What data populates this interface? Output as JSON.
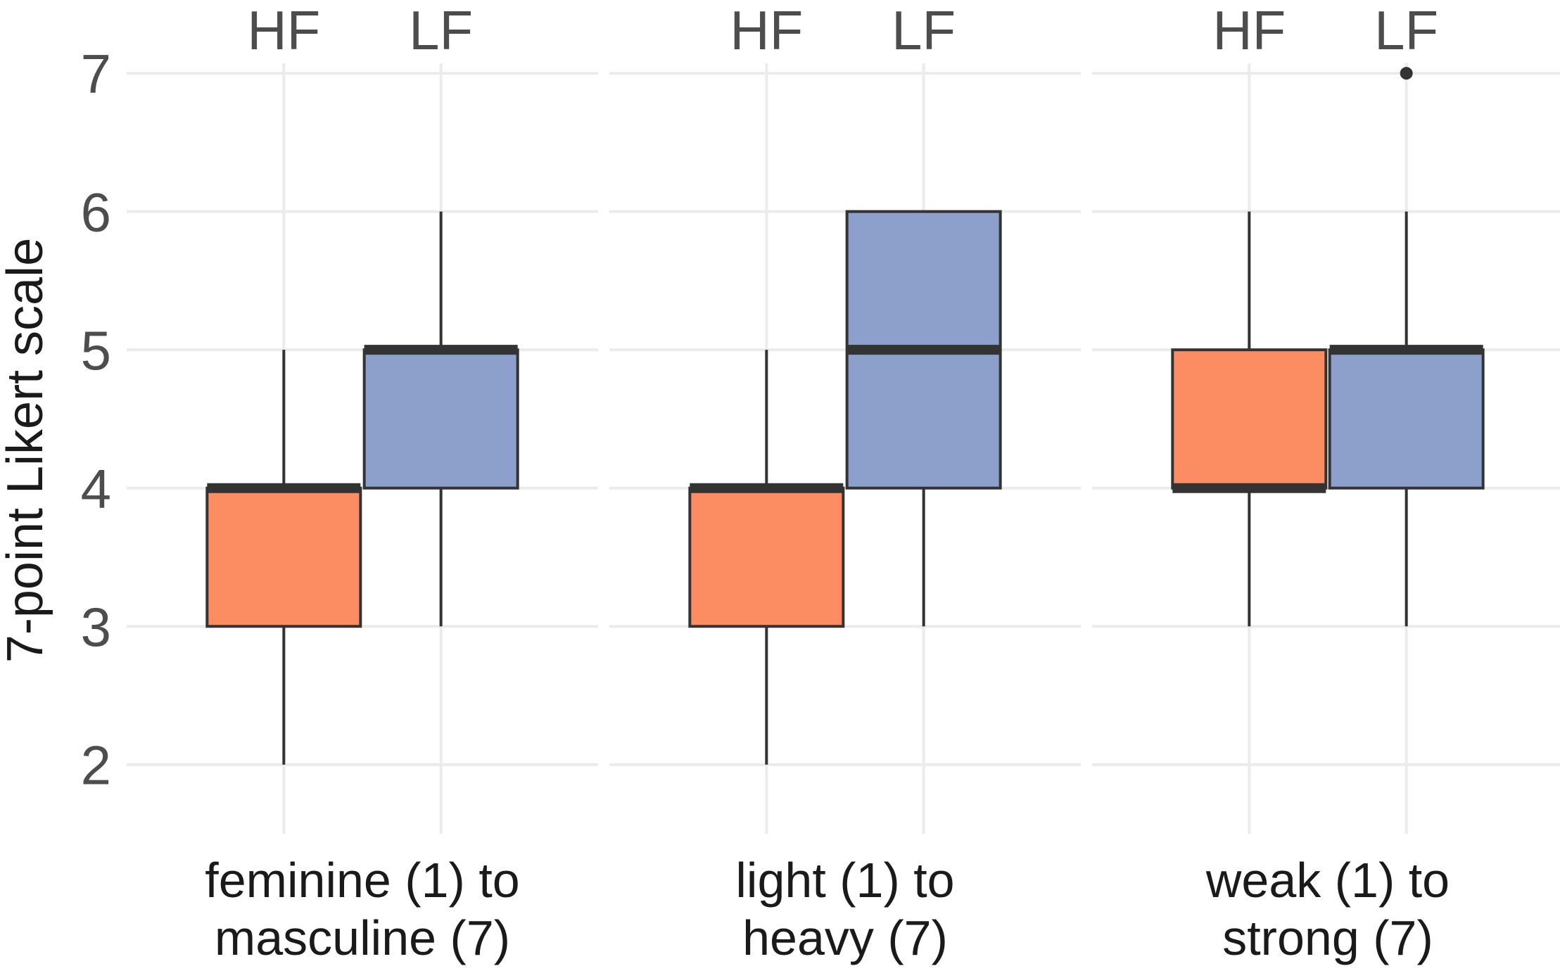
{
  "chart_data": {
    "type": "boxplot",
    "ylabel": "7-point Likert scale",
    "ylim": [
      1.5,
      7.25
    ],
    "y_ticks": [
      2,
      3,
      4,
      5,
      6,
      7
    ],
    "y_tick_labels": [
      "2",
      "3",
      "4",
      "5",
      "6",
      "7"
    ],
    "groups": [
      "HF",
      "LF"
    ],
    "colors": {
      "HF": "#fc8d62",
      "LF": "#8da0cb"
    },
    "facets": [
      {
        "label_lines": [
          "feminine (1) to",
          "masculine (7)"
        ],
        "boxes": [
          {
            "group": "HF",
            "min": 2,
            "q1": 3,
            "median": 4,
            "q3": 4,
            "max": 5,
            "outliers": []
          },
          {
            "group": "LF",
            "min": 3,
            "q1": 4,
            "median": 5,
            "q3": 5,
            "max": 6,
            "outliers": []
          }
        ]
      },
      {
        "label_lines": [
          "light (1) to",
          "heavy (7)"
        ],
        "boxes": [
          {
            "group": "HF",
            "min": 2,
            "q1": 3,
            "median": 4,
            "q3": 4,
            "max": 5,
            "outliers": []
          },
          {
            "group": "LF",
            "min": 3,
            "q1": 4,
            "median": 5,
            "q3": 6,
            "max": 6,
            "outliers": []
          }
        ]
      },
      {
        "label_lines": [
          "weak (1) to",
          "strong (7)"
        ],
        "boxes": [
          {
            "group": "HF",
            "min": 3,
            "q1": 4,
            "median": 4,
            "q3": 5,
            "max": 6,
            "outliers": []
          },
          {
            "group": "LF",
            "min": 3,
            "q1": 4,
            "median": 5,
            "q3": 5,
            "max": 6,
            "outliers": [
              7
            ]
          }
        ]
      }
    ]
  }
}
